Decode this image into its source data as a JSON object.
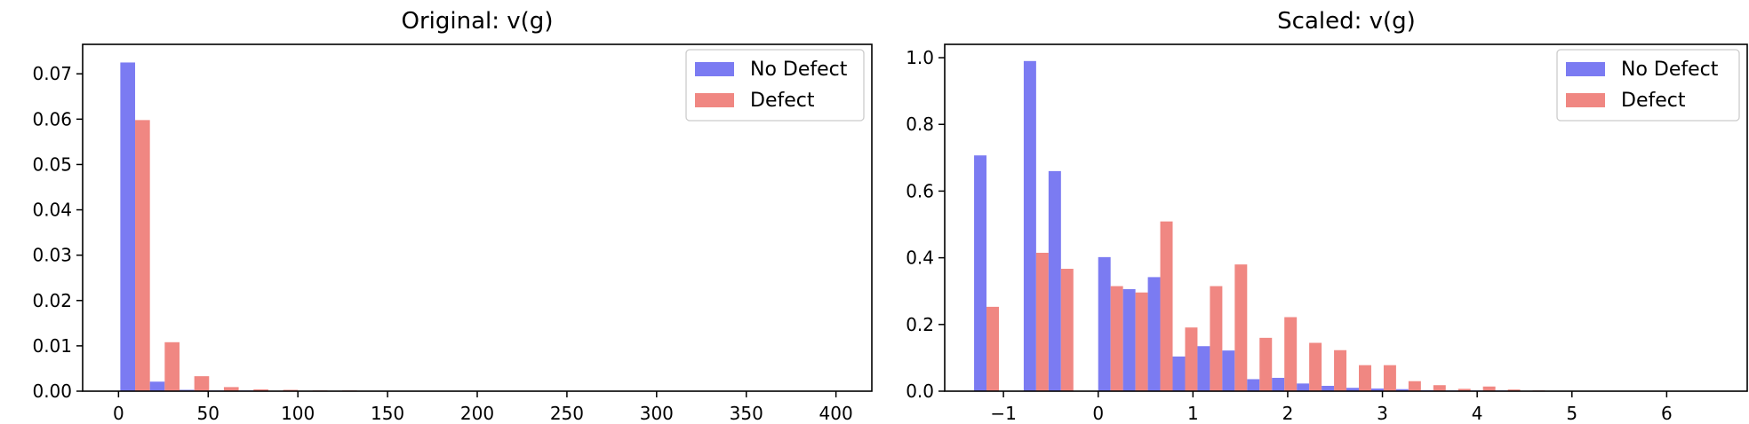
{
  "chart_data": [
    {
      "type": "bar",
      "title": "Original: v(g)",
      "xlabel": "",
      "ylabel": "",
      "xlim": [
        -20,
        420
      ],
      "ylim": [
        0,
        0.0765
      ],
      "xticks": [
        0,
        50,
        100,
        150,
        200,
        250,
        300,
        350,
        400
      ],
      "xtick_labels": [
        "0",
        "50",
        "100",
        "150",
        "200",
        "250",
        "300",
        "350",
        "400"
      ],
      "yticks": [
        0.0,
        0.01,
        0.02,
        0.03,
        0.04,
        0.05,
        0.06,
        0.07
      ],
      "ytick_labels": [
        "0.00",
        "0.01",
        "0.02",
        "0.03",
        "0.04",
        "0.05",
        "0.06",
        "0.07"
      ],
      "legend": "top-right",
      "bin_edges": [
        1,
        17.5,
        34,
        50.5,
        67,
        83.5,
        100,
        116.5,
        133,
        149.5,
        166,
        182.5,
        199,
        215.5,
        232,
        248.5,
        265,
        281.5,
        298,
        314.5,
        331,
        347.5,
        364,
        380.5,
        397
      ],
      "series": [
        {
          "name": "No Defect",
          "color": "#7b7bf2",
          "values": [
            0.0725,
            0.0021,
            0.0003,
            0.0001,
            0.0001,
            0.0,
            0.0,
            0.0,
            0.0,
            0.0,
            0.0,
            0.0,
            0.0,
            0.0,
            0.0,
            0.0,
            0.0,
            0.0,
            0.0,
            0.0,
            0.0,
            0.0,
            0.0,
            0.0
          ]
        },
        {
          "name": "Defect",
          "color": "#f08782",
          "values": [
            0.0598,
            0.0108,
            0.0033,
            0.0009,
            0.0004,
            0.0003,
            0.0001,
            0.0001,
            0.0,
            0.0,
            0.0,
            0.0,
            0.0,
            0.0,
            0.0,
            0.0,
            0.0,
            0.0,
            0.0,
            0.0,
            0.0,
            0.0,
            0.0,
            0.0
          ]
        }
      ]
    },
    {
      "type": "bar",
      "title": "Scaled: v(g)",
      "xlabel": "",
      "ylabel": "",
      "xlim": [
        -1.62,
        6.85
      ],
      "ylim": [
        0,
        1.04
      ],
      "xticks": [
        -1,
        0,
        1,
        2,
        3,
        4,
        5,
        6
      ],
      "xtick_labels": [
        "−1",
        "0",
        "1",
        "2",
        "3",
        "4",
        "5",
        "6"
      ],
      "yticks": [
        0.0,
        0.2,
        0.4,
        0.6,
        0.8,
        1.0
      ],
      "ytick_labels": [
        "0.0",
        "0.2",
        "0.4",
        "0.6",
        "0.8",
        "1.0"
      ],
      "legend": "top-right",
      "bin_edges": [
        -1.31,
        -1.048,
        -0.786,
        -0.524,
        -0.262,
        0.0,
        0.262,
        0.524,
        0.786,
        1.048,
        1.31,
        1.572,
        1.834,
        2.096,
        2.358,
        2.62,
        2.882,
        3.144,
        3.406,
        3.668,
        3.93,
        4.192,
        4.454,
        4.716,
        4.978,
        5.24,
        5.502,
        5.764,
        6.026,
        6.288,
        6.55
      ],
      "series": [
        {
          "name": "No Defect",
          "color": "#7b7bf2",
          "values": [
            0.707,
            0.0,
            0.99,
            0.66,
            0.0,
            0.402,
            0.306,
            0.342,
            0.104,
            0.135,
            0.122,
            0.036,
            0.04,
            0.023,
            0.016,
            0.01,
            0.008,
            0.006,
            0.003,
            0.002,
            0.001,
            0.001,
            0.0,
            0.0,
            0.0,
            0.0,
            0.0,
            0.0,
            0.0,
            0.0
          ]
        },
        {
          "name": "Defect",
          "color": "#f08782",
          "values": [
            0.253,
            0.0,
            0.415,
            0.367,
            0.0,
            0.315,
            0.296,
            0.509,
            0.191,
            0.315,
            0.38,
            0.16,
            0.222,
            0.145,
            0.123,
            0.078,
            0.078,
            0.03,
            0.018,
            0.007,
            0.014,
            0.005,
            0.001,
            0.0,
            0.0,
            0.0,
            0.0,
            0.0,
            0.0,
            0.0
          ]
        }
      ]
    }
  ]
}
